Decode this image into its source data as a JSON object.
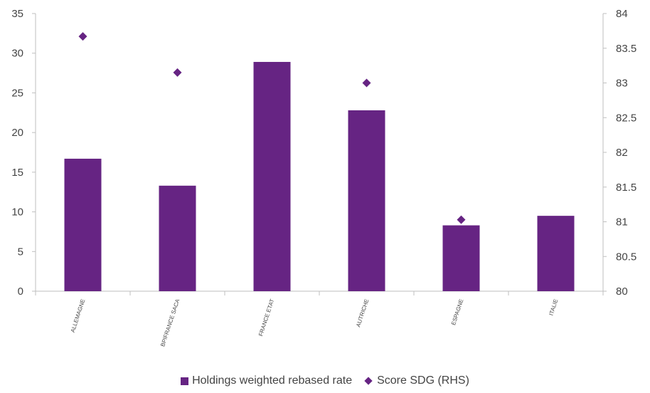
{
  "chart_data": {
    "type": "bar",
    "title": "",
    "categories": [
      "ALLEMAGNE",
      "BPIFRANCE SACA",
      "FRANCE ETAT",
      "AUTRICHE",
      "ESPAGNE",
      "ITALIE"
    ],
    "series": [
      {
        "name": "Holdings weighted rebased rate",
        "type": "bar",
        "axis": "left",
        "values": [
          16.7,
          13.3,
          28.9,
          22.8,
          8.3,
          9.5
        ]
      },
      {
        "name": "Score SDG (RHS)",
        "type": "scatter",
        "axis": "right",
        "values": [
          83.67,
          83.15,
          null,
          83.0,
          81.03,
          null
        ]
      }
    ],
    "left_axis": {
      "min": 0,
      "max": 35,
      "step": 5,
      "ticks": [
        "0",
        "5",
        "10",
        "15",
        "20",
        "25",
        "30",
        "35"
      ]
    },
    "right_axis": {
      "min": 80,
      "max": 84,
      "step": 0.5,
      "ticks": [
        "80",
        "80.5",
        "81",
        "81.5",
        "82",
        "82.5",
        "83",
        "83.5",
        "84"
      ]
    },
    "grid": false,
    "legend_position": "bottom",
    "colors": {
      "bar": "#662483",
      "marker": "#662483",
      "axis": "#bfbfbf",
      "text": "#444444"
    }
  }
}
